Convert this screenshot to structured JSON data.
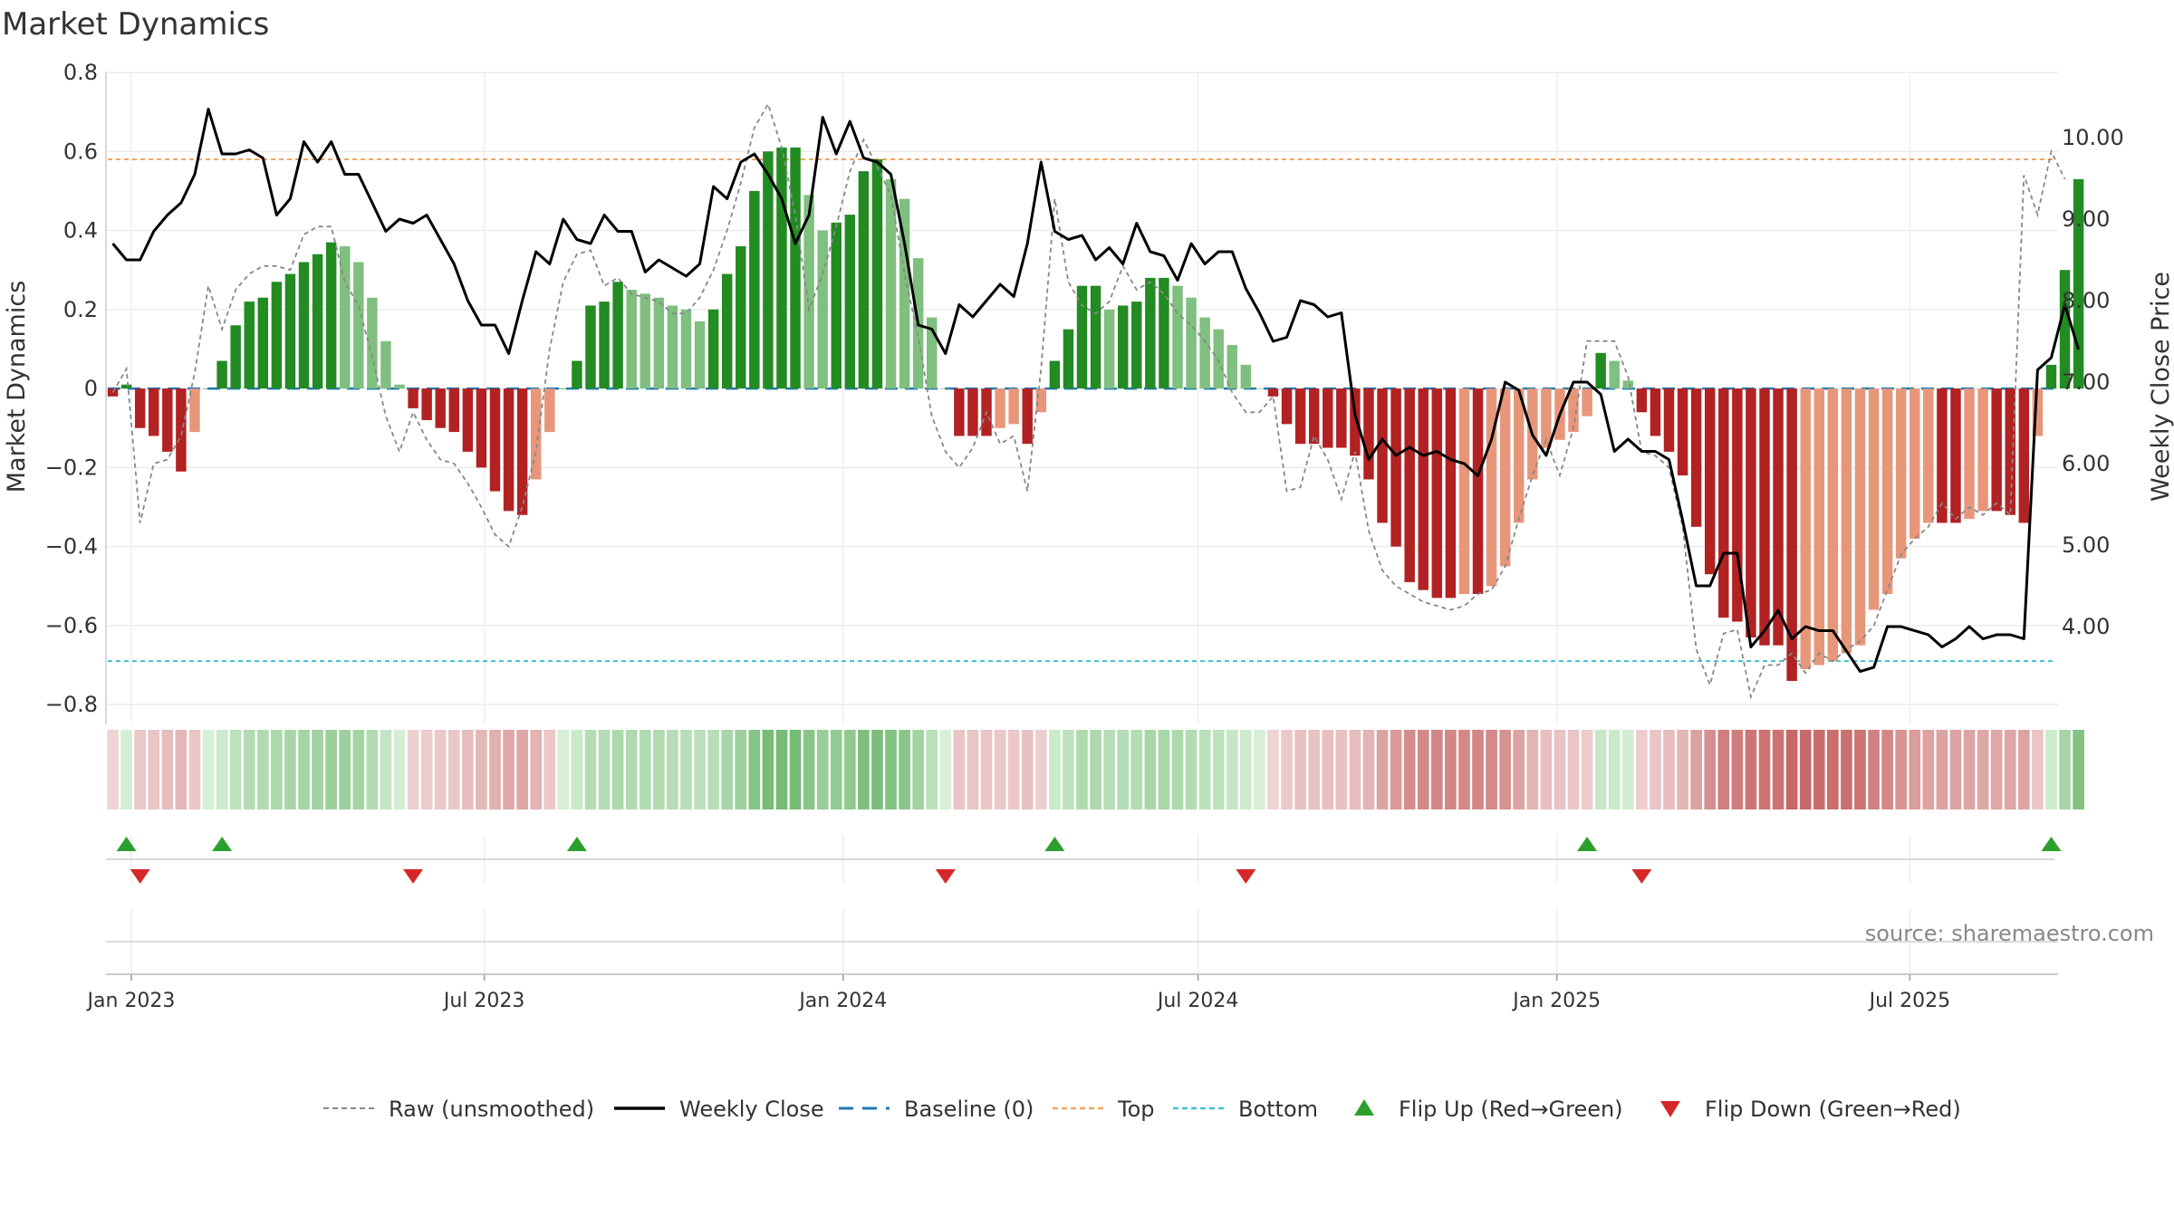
{
  "chart_data": {
    "type": "bar",
    "title": "Market Dynamics",
    "ylabel": "Market Dynamics",
    "y2label": "Weekly Close Price",
    "ylim": [
      -0.85,
      0.8
    ],
    "y2lim": [
      2.8,
      10.8
    ],
    "yticks": [
      "0.8",
      "0.6",
      "0.4",
      "0.2",
      "0",
      "−0.2",
      "−0.4",
      "−0.6",
      "−0.8"
    ],
    "y2ticks": [
      "10.00",
      "9.00",
      "8.00",
      "7.00",
      "6.00",
      "5.00",
      "4.00"
    ],
    "x_start": "2022-12-19",
    "x_end": "2025-09-15",
    "xticks": [
      {
        "label": "Jan 2023",
        "date": "2023-01-01"
      },
      {
        "label": "Jul 2023",
        "date": "2023-07-01"
      },
      {
        "label": "Jan 2024",
        "date": "2024-01-01"
      },
      {
        "label": "Jul 2024",
        "date": "2024-07-01"
      },
      {
        "label": "Jan 2025",
        "date": "2025-01-01"
      },
      {
        "label": "Jul 2025",
        "date": "2025-07-01"
      }
    ],
    "first_week": "2022-12-19",
    "top_level": 0.58,
    "bottom_level": -0.69,
    "baseline": 0,
    "grid": true,
    "legend_position": "bottom-center",
    "source_text": "source: sharemaestro.com",
    "colors": {
      "strong_up": "#228b22",
      "weak_up": "#7fbf7f",
      "strong_down": "#b22222",
      "weak_down": "#e8967a",
      "raw": "#888888",
      "close": "#000000",
      "baseline": "#1f77b4",
      "top": "#f4a460",
      "bottom": "#40c0d0",
      "flip_up": "#2ca02c",
      "flip_down": "#d62728"
    },
    "dynamics": [
      -0.02,
      0.01,
      -0.1,
      -0.12,
      -0.16,
      -0.21,
      -0.11,
      0,
      0.07,
      0.16,
      0.22,
      0.23,
      0.27,
      0.29,
      0.32,
      0.34,
      0.37,
      0.36,
      0.32,
      0.23,
      0.12,
      0.01,
      -0.05,
      -0.08,
      -0.1,
      -0.11,
      -0.16,
      -0.2,
      -0.26,
      -0.31,
      -0.32,
      -0.23,
      -0.11,
      0,
      0.07,
      0.21,
      0.22,
      0.27,
      0.25,
      0.24,
      0.23,
      0.21,
      0.2,
      0.17,
      0.2,
      0.29,
      0.36,
      0.5,
      0.6,
      0.61,
      0.61,
      0.49,
      0.4,
      0.42,
      0.44,
      0.55,
      0.58,
      0.53,
      0.48,
      0.33,
      0.18,
      0,
      -0.12,
      -0.12,
      -0.12,
      -0.1,
      -0.09,
      -0.14,
      -0.06,
      0.07,
      0.15,
      0.26,
      0.26,
      0.2,
      0.21,
      0.22,
      0.28,
      0.28,
      0.26,
      0.23,
      0.18,
      0.15,
      0.11,
      0.06,
      0,
      -0.02,
      -0.09,
      -0.14,
      -0.14,
      -0.15,
      -0.15,
      -0.17,
      -0.23,
      -0.34,
      -0.4,
      -0.49,
      -0.51,
      -0.53,
      -0.53,
      -0.52,
      -0.52,
      -0.5,
      -0.45,
      -0.34,
      -0.23,
      -0.15,
      -0.13,
      -0.11,
      -0.07,
      0.09,
      0.07,
      0.02,
      -0.06,
      -0.12,
      -0.16,
      -0.22,
      -0.35,
      -0.47,
      -0.58,
      -0.59,
      -0.63,
      -0.65,
      -0.65,
      -0.74,
      -0.71,
      -0.7,
      -0.69,
      -0.67,
      -0.65,
      -0.56,
      -0.52,
      -0.43,
      -0.38,
      -0.34,
      -0.34,
      -0.34,
      -0.33,
      -0.31,
      -0.31,
      -0.32,
      -0.34,
      -0.12,
      0.06,
      0.3,
      0.53
    ],
    "raw": [
      -0.01,
      0.05,
      -0.34,
      -0.19,
      -0.18,
      -0.12,
      0.04,
      0.26,
      0.15,
      0.25,
      0.29,
      0.31,
      0.31,
      0.3,
      0.39,
      0.41,
      0.41,
      0.27,
      0.21,
      0.08,
      -0.07,
      -0.16,
      -0.06,
      -0.13,
      -0.18,
      -0.19,
      -0.24,
      -0.3,
      -0.37,
      -0.4,
      -0.3,
      -0.16,
      0.1,
      0.27,
      0.34,
      0.35,
      0.26,
      0.28,
      0.24,
      0.23,
      0.22,
      0.19,
      0.19,
      0.23,
      0.3,
      0.4,
      0.52,
      0.66,
      0.72,
      0.61,
      0.44,
      0.2,
      0.29,
      0.41,
      0.55,
      0.63,
      0.56,
      0.49,
      0.29,
      0.13,
      -0.07,
      -0.16,
      -0.2,
      -0.15,
      -0.06,
      -0.14,
      -0.12,
      -0.26,
      0.05,
      0.48,
      0.27,
      0.21,
      0.19,
      0.22,
      0.31,
      0.25,
      0.27,
      0.24,
      0.19,
      0.16,
      0.12,
      0.07,
      -0.01,
      -0.06,
      -0.06,
      -0.02,
      -0.26,
      -0.25,
      -0.12,
      -0.18,
      -0.28,
      -0.16,
      -0.36,
      -0.46,
      -0.5,
      -0.52,
      -0.54,
      -0.55,
      -0.56,
      -0.55,
      -0.52,
      -0.51,
      -0.45,
      -0.33,
      -0.22,
      -0.13,
      -0.22,
      -0.1,
      0.12,
      0.12,
      0.12,
      0.03,
      -0.16,
      -0.17,
      -0.2,
      -0.35,
      -0.66,
      -0.75,
      -0.62,
      -0.61,
      -0.78,
      -0.7,
      -0.7,
      -0.67,
      -0.72,
      -0.67,
      -0.69,
      -0.66,
      -0.64,
      -0.6,
      -0.51,
      -0.42,
      -0.38,
      -0.35,
      -0.29,
      -0.33,
      -0.3,
      -0.32,
      -0.29,
      -0.32,
      0.54,
      0.44,
      0.6,
      0.53
    ],
    "close": [
      8.7,
      8.5,
      8.5,
      8.85,
      9.05,
      9.2,
      9.55,
      10.35,
      9.8,
      9.8,
      9.85,
      9.75,
      9.05,
      9.25,
      9.95,
      9.7,
      9.95,
      9.55,
      9.55,
      9.2,
      8.85,
      9.0,
      8.95,
      9.05,
      8.75,
      8.45,
      8.0,
      7.7,
      7.7,
      7.35,
      8.0,
      8.6,
      8.45,
      9.0,
      8.75,
      8.7,
      9.05,
      8.85,
      8.85,
      8.35,
      8.5,
      8.4,
      8.3,
      8.45,
      9.4,
      9.25,
      9.7,
      9.8,
      9.55,
      9.25,
      8.7,
      9.05,
      10.25,
      9.8,
      10.2,
      9.75,
      9.7,
      9.55,
      8.7,
      7.7,
      7.65,
      7.35,
      7.95,
      7.8,
      8.0,
      8.2,
      8.05,
      8.7,
      9.7,
      8.85,
      8.75,
      8.8,
      8.5,
      8.65,
      8.45,
      8.95,
      8.6,
      8.55,
      8.25,
      8.7,
      8.45,
      8.6,
      8.6,
      8.15,
      7.85,
      7.5,
      7.55,
      8.0,
      7.95,
      7.8,
      7.85,
      6.6,
      6.05,
      6.3,
      6.1,
      6.2,
      6.1,
      6.15,
      6.05,
      6.0,
      5.85,
      6.3,
      7.0,
      6.9,
      6.35,
      6.1,
      6.6,
      7.0,
      7.0,
      6.85,
      6.15,
      6.3,
      6.15,
      6.15,
      6.05,
      5.3,
      4.5,
      4.5,
      4.9,
      4.9,
      3.75,
      3.95,
      4.2,
      3.85,
      4.0,
      3.95,
      3.95,
      3.7,
      3.45,
      3.5,
      4.0,
      4.0,
      3.95,
      3.9,
      3.75,
      3.85,
      4.0,
      3.85,
      3.9,
      3.9,
      3.85,
      7.15,
      7.3,
      7.95,
      7.4
    ],
    "flip_up_weeks": [
      1,
      8,
      34,
      69,
      108,
      142
    ],
    "flip_down_weeks": [
      2,
      22,
      61,
      83,
      112
    ],
    "legend": [
      {
        "key": "raw",
        "label": "Raw (unsmoothed)"
      },
      {
        "key": "close",
        "label": "Weekly Close"
      },
      {
        "key": "baseline",
        "label": "Baseline (0)"
      },
      {
        "key": "top",
        "label": "Top"
      },
      {
        "key": "bottom",
        "label": "Bottom"
      },
      {
        "key": "flip_up",
        "label": "Flip Up (Red→Green)"
      },
      {
        "key": "flip_down",
        "label": "Flip Down (Green→Red)"
      }
    ]
  }
}
